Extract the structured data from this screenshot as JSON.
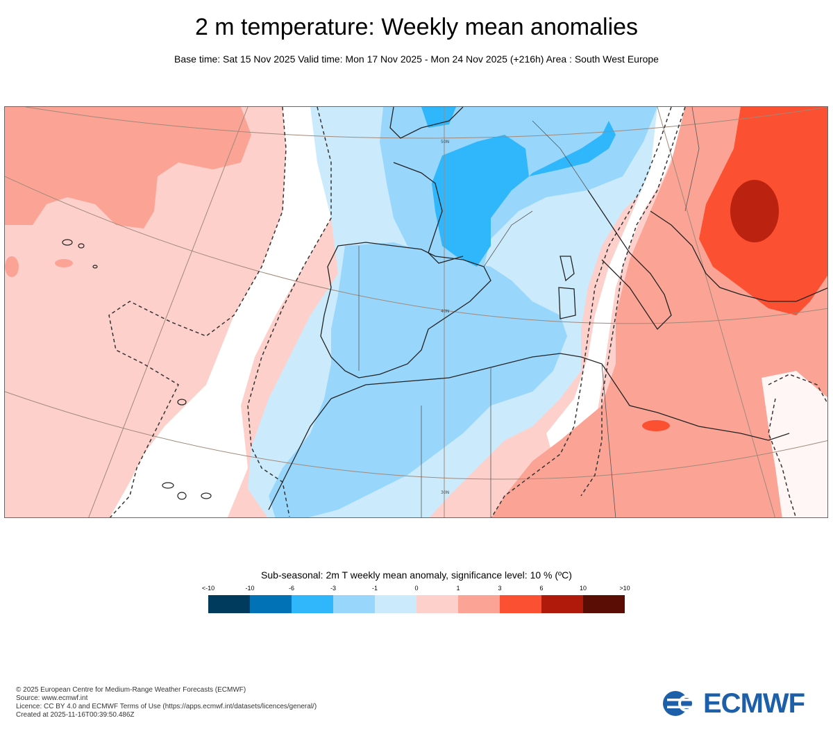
{
  "header": {
    "title": "2 m temperature: Weekly mean anomalies",
    "subtitle": "Base time: Sat 15 Nov 2025 Valid time: Mon 17 Nov 2025 - Mon 24 Nov 2025 (+216h) Area : South West Europe"
  },
  "map": {
    "lat_labels": [
      "50N",
      "40N",
      "30N"
    ],
    "region": "South West Europe"
  },
  "legend": {
    "title": "Sub-seasonal: 2m T weekly mean anomaly, significance level: 10 % (ºC)",
    "ticks": [
      "<-10",
      "-10",
      "-6",
      "-3",
      "-1",
      "0",
      "1",
      "3",
      "6",
      "10",
      ">10"
    ],
    "colors": [
      "#003a5c",
      "#0072b5",
      "#2fb6fb",
      "#99d6fb",
      "#cbebfd",
      "#fdd0cb",
      "#fba496",
      "#fb5031",
      "#b01a0a",
      "#5a0d05"
    ]
  },
  "footer": {
    "lines": [
      "© 2025 European Centre for Medium-Range Weather Forecasts (ECMWF)",
      "Source: www.ecmwf.int",
      "Licence: CC BY 4.0 and ECMWF Terms of Use (https://apps.ecmwf.int/datasets/licences/general/)",
      "Created at 2025-11-16T00:39:50.486Z"
    ]
  },
  "logo": {
    "text": "ECMWF",
    "color": "#1d5fa8"
  }
}
